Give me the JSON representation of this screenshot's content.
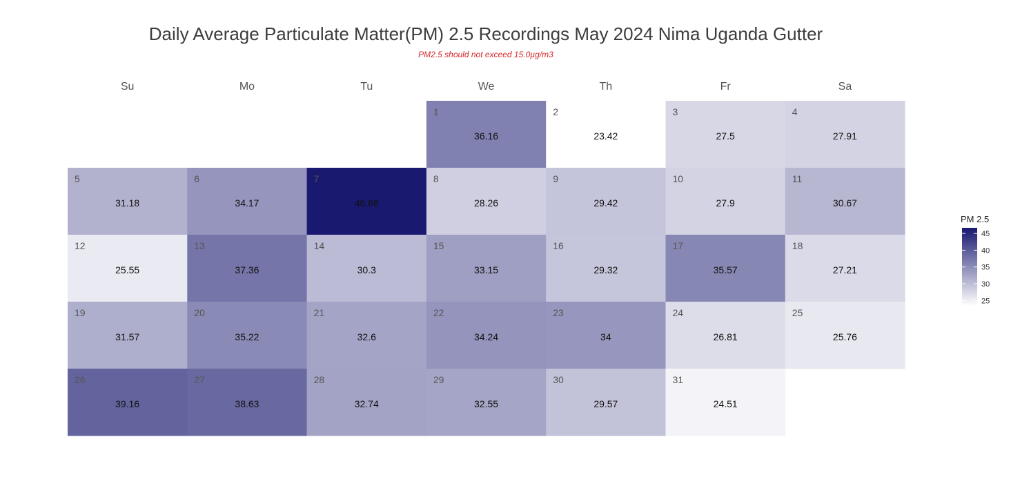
{
  "chart_data": {
    "type": "heatmap",
    "title": "Daily Average Particulate Matter(PM) 2.5 Recordings May 2024 Nima Uganda Gutter",
    "subtitle": "PM2.5 should not exceed 15.0µg/m3",
    "weekdays": [
      "Su",
      "Mo",
      "Tu",
      "We",
      "Th",
      "Fr",
      "Sa"
    ],
    "first_weekday_index": 3,
    "days": [
      1,
      2,
      3,
      4,
      5,
      6,
      7,
      8,
      9,
      10,
      11,
      12,
      13,
      14,
      15,
      16,
      17,
      18,
      19,
      20,
      21,
      22,
      23,
      24,
      25,
      26,
      27,
      28,
      29,
      30,
      31
    ],
    "values": [
      36.16,
      23.42,
      27.5,
      27.91,
      31.18,
      34.17,
      46.68,
      28.26,
      29.42,
      27.9,
      30.67,
      25.55,
      37.36,
      30.3,
      33.15,
      29.32,
      35.57,
      27.21,
      31.57,
      35.22,
      32.6,
      34.24,
      34,
      26.81,
      25.76,
      39.16,
      38.63,
      32.74,
      32.55,
      29.57,
      24.51
    ],
    "value_labels": [
      "36.16",
      "23.42",
      "27.5",
      "27.91",
      "31.18",
      "34.17",
      "46.68",
      "28.26",
      "29.42",
      "27.9",
      "30.67",
      "25.55",
      "37.36",
      "30.3",
      "33.15",
      "29.32",
      "35.57",
      "27.21",
      "31.57",
      "35.22",
      "32.6",
      "34.24",
      "34",
      "26.81",
      "25.76",
      "39.16",
      "38.63",
      "32.74",
      "32.55",
      "29.57",
      "24.51"
    ],
    "color_scale": {
      "low": "#ffffff",
      "high": "#191970",
      "min": 23.42,
      "max": 46.68
    },
    "legend": {
      "title": "PM 2.5",
      "ticks": [
        25,
        30,
        35,
        40,
        45
      ],
      "placement": "right"
    }
  }
}
